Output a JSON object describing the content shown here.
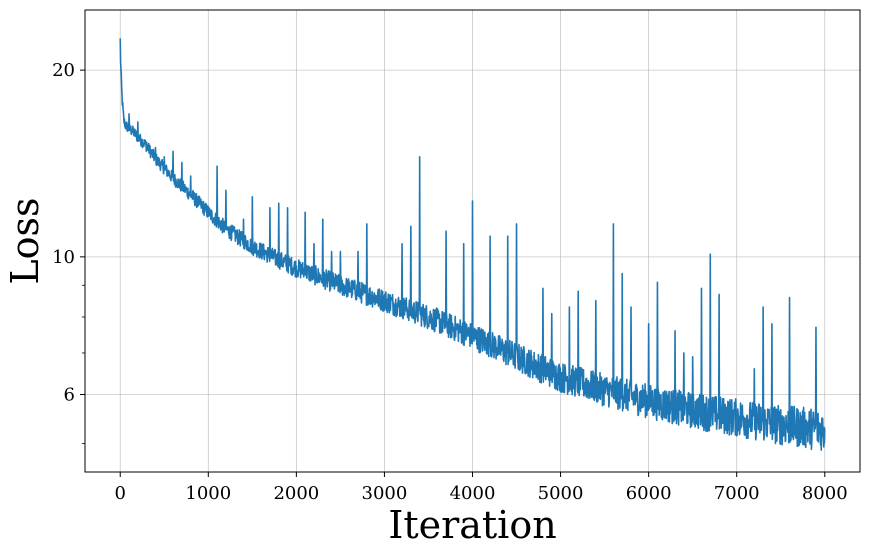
{
  "chart_data": {
    "type": "line",
    "xlabel": "Iteration",
    "ylabel": "Loss",
    "xlim": [
      -400,
      8400
    ],
    "ylim": [
      4.5,
      25
    ],
    "yscale": "log",
    "grid": true,
    "x_ticks": [
      0,
      1000,
      2000,
      3000,
      4000,
      5000,
      6000,
      7000,
      8000
    ],
    "y_ticks": [
      6,
      10,
      20
    ],
    "y_minor_ticks": [
      5,
      7,
      8,
      9
    ],
    "series": [
      {
        "color": "#1f77b4",
        "trend_x": [
          0,
          10,
          20,
          40,
          60,
          100,
          150,
          200,
          300,
          400,
          500,
          600,
          800,
          1000,
          1200,
          1500,
          1800,
          2000,
          2500,
          3000,
          3500,
          4000,
          4500,
          5000,
          5500,
          6000,
          6500,
          7000,
          7500,
          8000
        ],
        "trend_y": [
          21.5,
          19.5,
          18.0,
          16.5,
          16.2,
          16.0,
          15.8,
          15.5,
          15.0,
          14.3,
          13.8,
          13.3,
          12.5,
          11.7,
          11.0,
          10.3,
          9.8,
          9.5,
          8.9,
          8.4,
          7.9,
          7.35,
          6.8,
          6.3,
          6.0,
          5.75,
          5.55,
          5.4,
          5.25,
          5.15
        ],
        "spike_x": [
          0,
          100,
          200,
          300,
          400,
          500,
          600,
          700,
          800,
          1100,
          1200,
          1400,
          1500,
          1700,
          1800,
          1900,
          2100,
          2200,
          2300,
          2400,
          2500,
          2700,
          2800,
          3200,
          3300,
          3400,
          3700,
          3900,
          4000,
          4200,
          4400,
          4500,
          4800,
          4900,
          5100,
          5200,
          5400,
          5600,
          5700,
          5800,
          6000,
          6100,
          6300,
          6400,
          6500,
          6600,
          6700,
          6800,
          7200,
          7300,
          7400,
          7600,
          7900
        ],
        "spike_y": [
          22.5,
          17.0,
          16.5,
          15.3,
          15.0,
          14.5,
          14.8,
          14.2,
          13.5,
          14.0,
          12.8,
          11.5,
          12.5,
          12.0,
          12.2,
          12.0,
          11.8,
          10.5,
          11.5,
          10.2,
          10.2,
          10.2,
          11.3,
          10.5,
          11.2,
          14.5,
          11.0,
          10.5,
          12.3,
          10.8,
          10.8,
          11.3,
          8.9,
          8.1,
          8.3,
          8.8,
          8.5,
          11.3,
          9.4,
          8.3,
          7.8,
          9.1,
          7.6,
          7.0,
          6.9,
          8.9,
          10.1,
          8.7,
          6.6,
          8.3,
          7.8,
          8.6,
          7.7
        ]
      }
    ]
  }
}
